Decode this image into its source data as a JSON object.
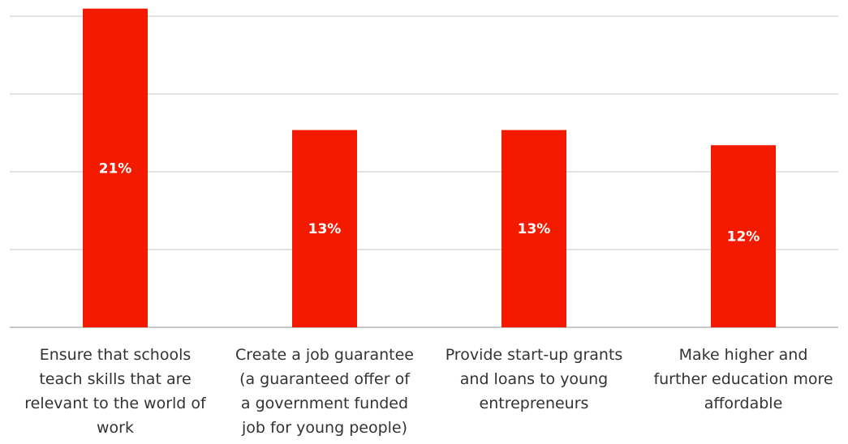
{
  "chart_data": {
    "type": "bar",
    "categories": [
      [
        "Ensure that schools",
        "teach skills that are",
        "relevant to the world of",
        "work"
      ],
      [
        "Create a job guarantee",
        "(a guaranteed offer of",
        "a government funded",
        "job for young people)"
      ],
      [
        "Provide start-up grants",
        "and loans to young",
        "entrepreneurs"
      ],
      [
        "Make higher and",
        "further education more",
        "affordable"
      ]
    ],
    "values": [
      21,
      13,
      13,
      12
    ],
    "data_labels": [
      "21%",
      "13%",
      "13%",
      "12%"
    ],
    "bar_color": "#f41a00",
    "ylim": [
      0,
      20.5
    ],
    "grid": true,
    "title": "",
    "xlabel": "",
    "ylabel": ""
  }
}
